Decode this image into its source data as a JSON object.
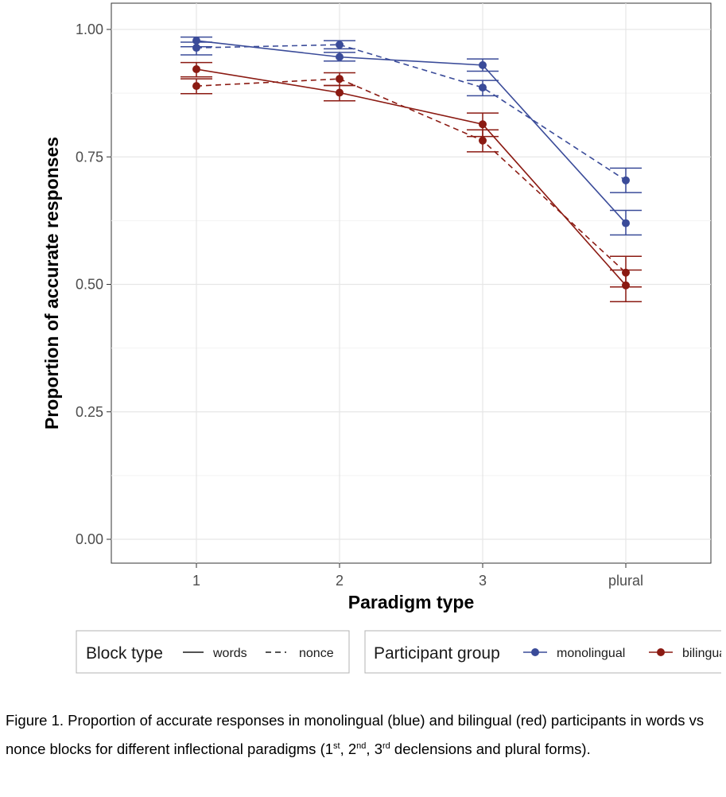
{
  "chart_data": {
    "type": "line",
    "xlabel": "Paradigm type",
    "ylabel": "Proportion of accurate responses",
    "categories": [
      "1",
      "2",
      "3",
      "plural"
    ],
    "ylim": [
      0,
      1.0
    ],
    "yticks": [
      0.0,
      0.25,
      0.5,
      0.75,
      1.0
    ],
    "yticklabels": [
      "0.00",
      "0.25",
      "0.50",
      "0.75",
      "1.00"
    ],
    "grid": true,
    "legend_position": "bottom",
    "series": [
      {
        "group": "monolingual",
        "block": "words",
        "color": "#3a4b99",
        "linetype": "solid",
        "values": [
          0.978,
          0.946,
          0.93,
          0.62
        ],
        "ci_low": [
          0.966,
          0.938,
          0.918,
          0.597
        ],
        "ci_high": [
          0.985,
          0.955,
          0.942,
          0.645
        ]
      },
      {
        "group": "monolingual",
        "block": "nonce",
        "color": "#3a4b99",
        "linetype": "dashed",
        "values": [
          0.964,
          0.97,
          0.886,
          0.704
        ],
        "ci_low": [
          0.95,
          0.962,
          0.87,
          0.68
        ],
        "ci_high": [
          0.975,
          0.978,
          0.9,
          0.728
        ]
      },
      {
        "group": "bilingual",
        "block": "words",
        "color": "#8b1a12",
        "linetype": "solid",
        "values": [
          0.922,
          0.876,
          0.814,
          0.498
        ],
        "ci_low": [
          0.907,
          0.86,
          0.79,
          0.466
        ],
        "ci_high": [
          0.935,
          0.89,
          0.836,
          0.528
        ]
      },
      {
        "group": "bilingual",
        "block": "nonce",
        "color": "#8b1a12",
        "linetype": "dashed",
        "values": [
          0.889,
          0.903,
          0.782,
          0.523
        ],
        "ci_low": [
          0.874,
          0.89,
          0.76,
          0.495
        ],
        "ci_high": [
          0.903,
          0.915,
          0.803,
          0.555
        ]
      }
    ],
    "legends": [
      {
        "title": "Block type",
        "items": [
          {
            "label": "words",
            "linetype": "solid"
          },
          {
            "label": "nonce",
            "linetype": "dashed"
          }
        ]
      },
      {
        "title": "Participant group",
        "items": [
          {
            "label": "monolingual",
            "color": "#3a4b99"
          },
          {
            "label": "bilingual",
            "color": "#8b1a12"
          }
        ]
      }
    ]
  },
  "caption": {
    "part1": "Figure 1. Proportion of accurate responses in monolingual (blue) and bilingual (red) participants in words vs nonce blocks for different inflectional paradigms (1",
    "sup1": "st",
    "part2": ", 2",
    "sup2": "nd",
    "part3": ", 3",
    "sup3": "rd",
    "part4": " declensions and plural forms)."
  }
}
